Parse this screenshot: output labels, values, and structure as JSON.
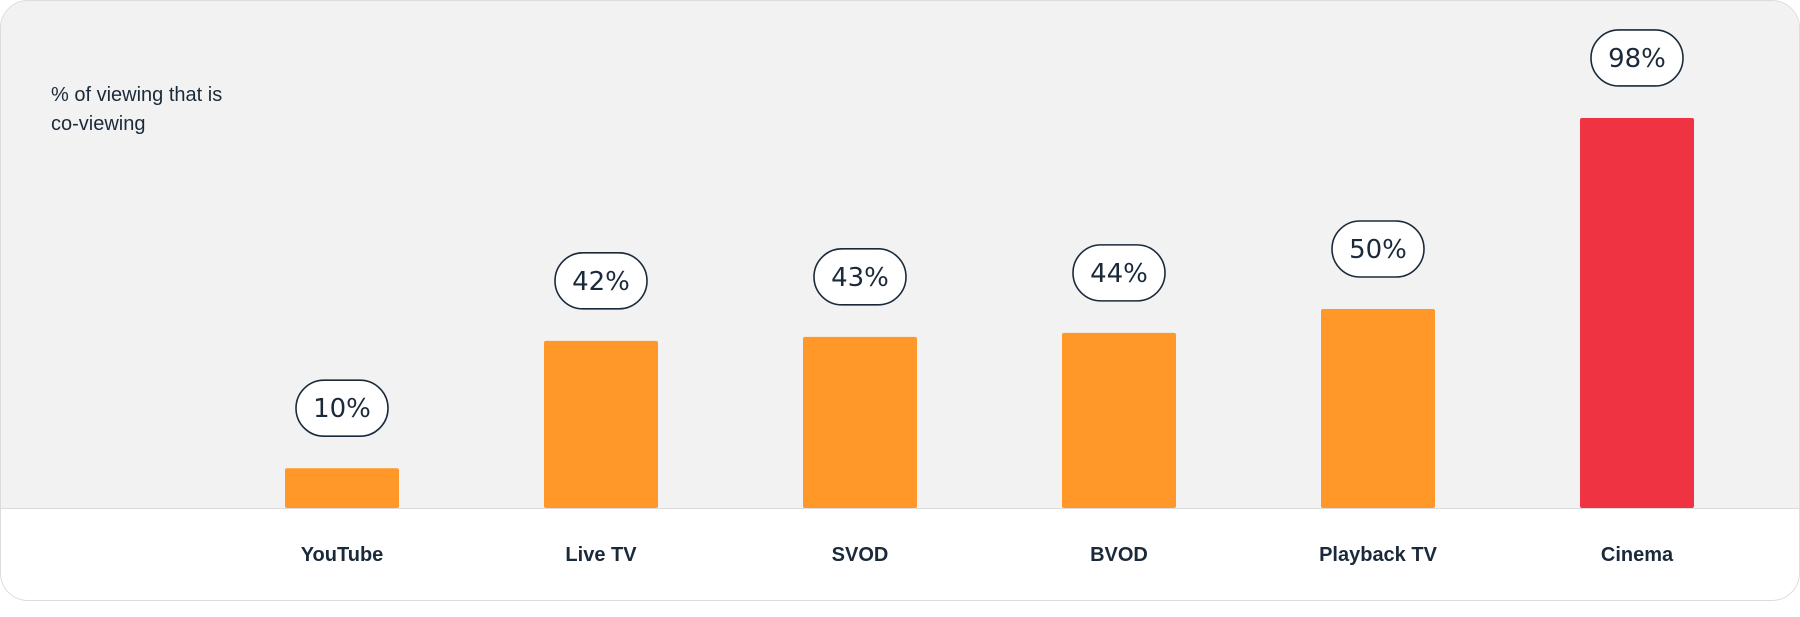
{
  "chart_data": {
    "type": "bar",
    "title": "% of viewing that is co-viewing",
    "categories": [
      "YouTube",
      "Live TV",
      "SVOD",
      "BVOD",
      "Playback TV",
      "Cinema"
    ],
    "values": [
      10,
      42,
      43,
      44,
      50,
      98
    ],
    "data_labels": [
      "10%",
      "42%",
      "43%",
      "44%",
      "50%",
      "98%"
    ],
    "ylim": [
      0,
      100
    ],
    "grid": false,
    "legend": "none",
    "colors": {
      "default_bar": "#ff9729",
      "highlight_bar": "#ef3342",
      "plot_background": "#f2f2f2",
      "text": "#1b2a3a"
    },
    "highlight_category": "Cinema"
  }
}
